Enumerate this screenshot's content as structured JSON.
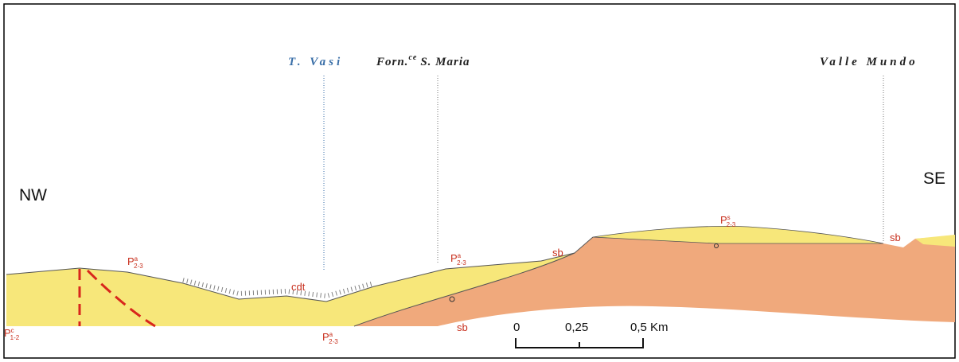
{
  "header": {
    "localities": [
      {
        "parts": [
          "T. Vasi"
        ]
      },
      {
        "parts": [
          "Forn.",
          "ce",
          "S. Maria"
        ]
      },
      {
        "parts": [
          "Valle Mundo"
        ]
      }
    ],
    "directions": {
      "left": "NW",
      "right": "SE"
    }
  },
  "units": [
    {
      "base": "P",
      "sup": "a",
      "sub": "2-3"
    },
    {
      "base": "P",
      "sup": "a",
      "sub": "2-3"
    },
    {
      "base": "P",
      "sup": "a",
      "sub": "2-3"
    },
    {
      "base": "P",
      "sup": "s",
      "sub": "2-3"
    },
    {
      "base": "P",
      "sup": "c",
      "sub": "1-2"
    }
  ],
  "labels": {
    "cdt": "cdt",
    "sb": [
      "sb",
      "sb",
      "sb"
    ]
  },
  "scale": {
    "ticks": [
      "0",
      "0,25",
      "0,5 Km"
    ]
  }
}
